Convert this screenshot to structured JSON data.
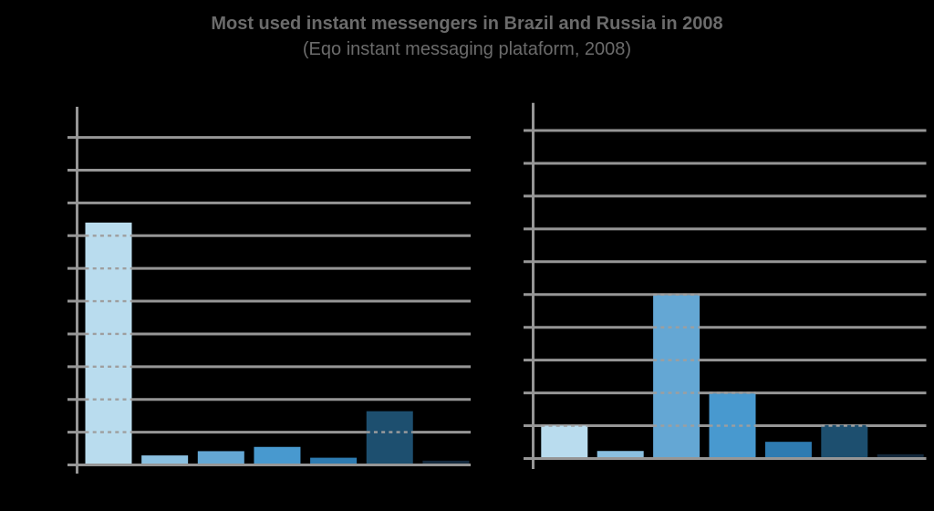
{
  "title": {
    "line1": "Most used instant messengers in Brazil and Russia in 2008",
    "line2": "(Eqo instant messaging plataform, 2008)"
  },
  "colors": {
    "background": "#000000",
    "title_text": "#6b6b6b",
    "grid_line": "#969696",
    "grid_dash_over_bars": "#9e9e9e",
    "bar_palette": [
      "#b9dcee",
      "#8bc0e0",
      "#64a7d4",
      "#4899cf",
      "#2e7bb1",
      "#1d4f6f",
      "#13293d"
    ]
  },
  "chart_data": {
    "type": "bar",
    "title": "Most used instant messengers in Brazil and Russia in 2008",
    "subtitle": "(Eqo instant messaging plataform, 2008)",
    "ylim": [
      0,
      100
    ],
    "gridline_step": 10,
    "grid": true,
    "legend": false,
    "xticklabels": [],
    "yticklabels": [],
    "panels": [
      {
        "name": "left-panel",
        "values": [
          74,
          2.9,
          4.2,
          5.5,
          2.2,
          16.4,
          1.3
        ]
      },
      {
        "name": "right-panel",
        "values": [
          10,
          2.3,
          49.8,
          19.8,
          5.1,
          10.2,
          1.3
        ]
      }
    ]
  }
}
